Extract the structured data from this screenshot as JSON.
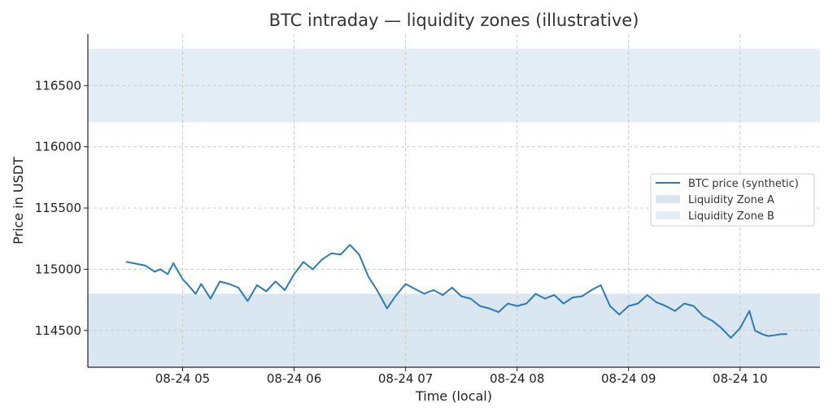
{
  "chart_data": {
    "type": "line",
    "title": "BTC intraday — liquidity zones (illustrative)",
    "xlabel": "Time (local)",
    "ylabel": "Price in USDT",
    "x_tick_labels": [
      "08-24 05",
      "08-24 06",
      "08-24 07",
      "08-24 08",
      "08-24 09",
      "08-24 10"
    ],
    "y_ticks": [
      114500,
      115000,
      115500,
      116000,
      116500
    ],
    "xlim": [
      "08-24 04:09",
      "08-24 10:43"
    ],
    "ylim": [
      114200,
      116920
    ],
    "grid": true,
    "legend_position": "center-right",
    "zones": [
      {
        "name": "Liquidity Zone A",
        "y_range": [
          114200,
          114800
        ],
        "color": "#dae6f0"
      },
      {
        "name": "Liquidity Zone B",
        "y_range": [
          116200,
          116800
        ],
        "color": "#e3edf5"
      }
    ],
    "series": [
      {
        "name": "BTC price (synthetic)",
        "color": "#2b7bb9",
        "x": [
          "08-24 04:30",
          "08-24 04:40",
          "08-24 04:45",
          "08-24 04:48",
          "08-24 04:52",
          "08-24 04:55",
          "08-24 05:00",
          "08-24 05:03",
          "08-24 05:07",
          "08-24 05:10",
          "08-24 05:15",
          "08-24 05:20",
          "08-24 05:25",
          "08-24 05:30",
          "08-24 05:35",
          "08-24 05:40",
          "08-24 05:45",
          "08-24 05:50",
          "08-24 05:55",
          "08-24 06:00",
          "08-24 06:05",
          "08-24 06:10",
          "08-24 06:15",
          "08-24 06:20",
          "08-24 06:25",
          "08-24 06:30",
          "08-24 06:35",
          "08-24 06:40",
          "08-24 06:45",
          "08-24 06:50",
          "08-24 06:55",
          "08-24 07:00",
          "08-24 07:05",
          "08-24 07:10",
          "08-24 07:15",
          "08-24 07:20",
          "08-24 07:25",
          "08-24 07:30",
          "08-24 07:35",
          "08-24 07:40",
          "08-24 07:45",
          "08-24 07:50",
          "08-24 07:55",
          "08-24 08:00",
          "08-24 08:05",
          "08-24 08:10",
          "08-24 08:15",
          "08-24 08:20",
          "08-24 08:25",
          "08-24 08:30",
          "08-24 08:35",
          "08-24 08:40",
          "08-24 08:45",
          "08-24 08:50",
          "08-24 08:55",
          "08-24 09:00",
          "08-24 09:05",
          "08-24 09:10",
          "08-24 09:15",
          "08-24 09:20",
          "08-24 09:25",
          "08-24 09:30",
          "08-24 09:35",
          "08-24 09:40",
          "08-24 09:45",
          "08-24 09:50",
          "08-24 09:55",
          "08-24 10:00",
          "08-24 10:05",
          "08-24 10:08",
          "08-24 10:12",
          "08-24 10:15",
          "08-24 10:18",
          "08-24 10:22",
          "08-24 10:25"
        ],
        "y": [
          115060,
          115030,
          114980,
          115000,
          114960,
          115050,
          114920,
          114870,
          114800,
          114880,
          114760,
          114900,
          114880,
          114850,
          114740,
          114870,
          114820,
          114900,
          114830,
          114960,
          115060,
          115000,
          115080,
          115130,
          115120,
          115200,
          115120,
          114940,
          114820,
          114680,
          114790,
          114880,
          114840,
          114800,
          114830,
          114790,
          114850,
          114780,
          114760,
          114700,
          114680,
          114650,
          114720,
          114700,
          114720,
          114800,
          114760,
          114790,
          114720,
          114770,
          114780,
          114830,
          114870,
          114700,
          114630,
          114700,
          114720,
          114790,
          114730,
          114700,
          114660,
          114720,
          114700,
          114620,
          114580,
          114520,
          114440,
          114520,
          114660,
          114500,
          114470,
          114455,
          114460,
          114470,
          114470
        ]
      }
    ]
  }
}
